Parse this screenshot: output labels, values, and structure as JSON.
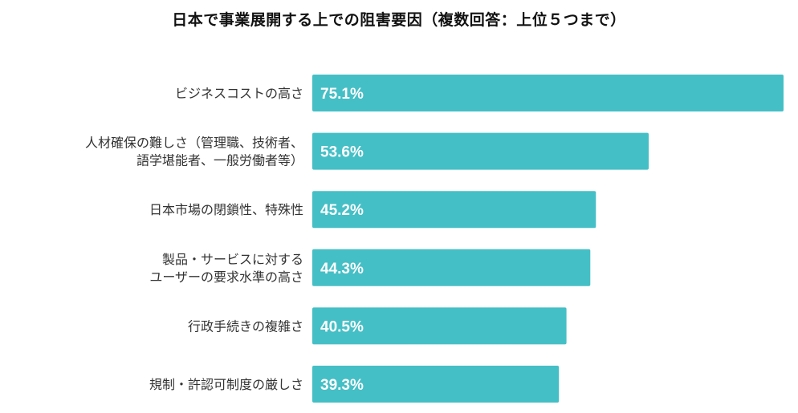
{
  "chart_data": {
    "type": "bar",
    "orientation": "horizontal",
    "title": "日本で事業展開する上での阻害要因（複数回答：上位５つまで）",
    "categories": [
      [
        "ビジネスコストの高さ"
      ],
      [
        "人材確保の難しさ（管理職、技術者、",
        "語学堪能者、一般労働者等）"
      ],
      [
        "日本市場の閉鎖性、特殊性"
      ],
      [
        "製品・サービスに対する",
        "ユーザーの要求水準の高さ"
      ],
      [
        "行政手続きの複雑さ"
      ],
      [
        "規制・許認可制度の厳しさ"
      ]
    ],
    "values": [
      75.1,
      53.6,
      45.2,
      44.3,
      40.5,
      39.3
    ],
    "value_labels": [
      "75.1%",
      "53.6%",
      "45.2%",
      "44.3%",
      "40.5%",
      "39.3%"
    ],
    "unit": "%",
    "xlim": [
      0,
      75.1
    ],
    "bar_color": "#45bfc6",
    "xlabel": "",
    "ylabel": ""
  }
}
